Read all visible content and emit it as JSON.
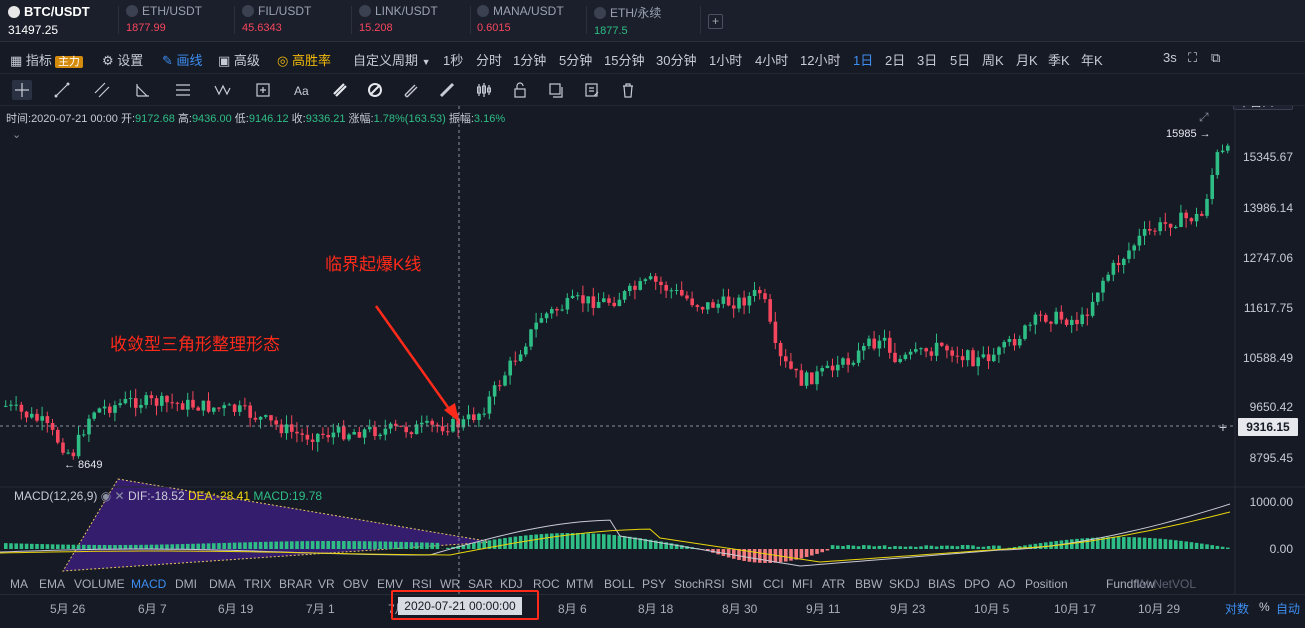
{
  "tickers": [
    {
      "symbol": "BTC/USDT",
      "price": "31497.25",
      "color": "#ffffff"
    },
    {
      "symbol": "ETH/USDT",
      "price": "1877.99",
      "color": "#f6465d"
    },
    {
      "symbol": "FIL/USDT",
      "price": "45.6343",
      "color": "#f6465d"
    },
    {
      "symbol": "LINK/USDT",
      "price": "15.208",
      "color": "#f6465d"
    },
    {
      "symbol": "MANA/USDT",
      "price": "0.6015",
      "color": "#f6465d"
    },
    {
      "symbol": "ETH/永续",
      "price": "1877.5",
      "color": "#2ebd85"
    }
  ],
  "add_tab": "+",
  "menu": {
    "indicator": "指标",
    "indicator_tag": "主力",
    "settings": "设置",
    "draw": "画线",
    "advanced": "高级",
    "win_rate": "高胜率",
    "custom_period": "自定义周期",
    "periods": [
      "1秒",
      "分时",
      "1分钟",
      "5分钟",
      "15分钟",
      "30分钟",
      "1小时",
      "4小时",
      "12小时",
      "1日",
      "2日",
      "3日",
      "5日",
      "周K",
      "月K",
      "季K",
      "年K"
    ],
    "active_period": "1日",
    "refresh": "3s",
    "window_mode": "单窗口"
  },
  "ohlc": {
    "time_label": "时间:",
    "time": "2020-07-21 00:00",
    "open_label": "开:",
    "open": "9172.68",
    "high_label": "高:",
    "high": "9436.00",
    "low_label": "低:",
    "low": "9146.12",
    "close_label": "收:",
    "close": "9336.21",
    "change_label": "涨幅:",
    "change": "1.78%(163.53)",
    "amp_label": "振幅:",
    "amp": "3.16%"
  },
  "price_axis": [
    "15345.67",
    "13986.14",
    "12747.06",
    "11617.75",
    "10588.49",
    "9650.42",
    "8795.45"
  ],
  "current_price": "9316.15",
  "high_marker": "15985 →",
  "low_marker": "← 8649",
  "annotations": {
    "triangle": "收敛型三角形整理形态",
    "breakout": "临界起爆K线"
  },
  "macd": {
    "title": "MACD(12,26,9)",
    "dif": "DIF:-18.52",
    "dea": "DEA:-28.41",
    "macd": "MACD:19.78",
    "axis": [
      "1000.00",
      "0.00"
    ]
  },
  "indicator_tabs": [
    "MA",
    "EMA",
    "VOLUME",
    "MACD",
    "DMI",
    "DMA",
    "TRIX",
    "BRAR",
    "VR",
    "OBV",
    "EMV",
    "RSI",
    "WR",
    "SAR",
    "KDJ",
    "ROC",
    "MTM",
    "BOLL",
    "PSY",
    "StochRSI",
    "SMI",
    "CCI",
    "MFI",
    "ATR",
    "BBW",
    "SKDJ",
    "BIAS",
    "DPO",
    "AO",
    "Position",
    "Fundflow",
    "AI-NetVOL"
  ],
  "active_indicator": "MACD",
  "date_axis": [
    "5月 26",
    "6月 7",
    "6月 19",
    "7月 1",
    "7月",
    "8月 6",
    "8月 18",
    "8月 30",
    "9月 11",
    "9月 23",
    "10月 5",
    "10月 17",
    "10月 29"
  ],
  "crosshair_date": "2020-07-21 00:00:00",
  "axis_controls": {
    "log": "对数",
    "percent": "%",
    "auto": "自动"
  },
  "colors": {
    "up": "#2ebd85",
    "down": "#f6465d",
    "accent": "#3d8ef0",
    "annotation": "#ff2a1a",
    "triangle_fill": "#3b1f7a"
  }
}
